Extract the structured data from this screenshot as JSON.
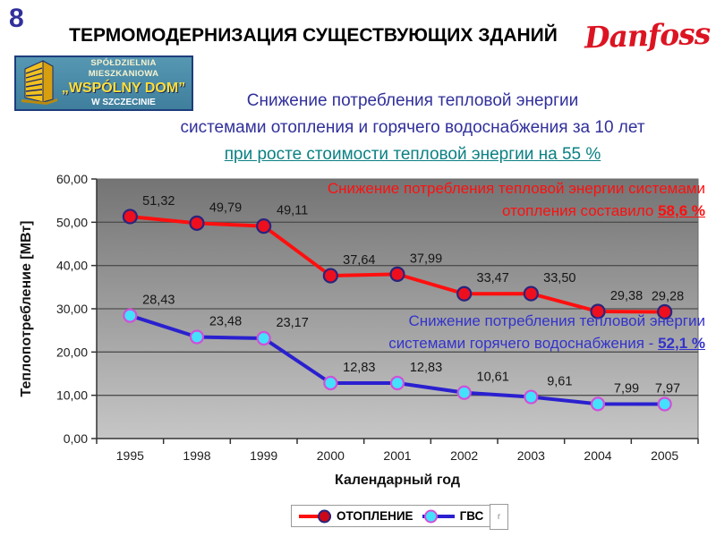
{
  "slide": {
    "page_number": "8",
    "title": "ТЕРМОМОДЕРНИЗАЦИЯ СУЩЕСТВУЮЩИХ ЗДАНИЙ",
    "subtitle_line1": "Снижение потребления тепловой энергии",
    "subtitle_line2": "системами отопления и горячего водоснабжения за 10 лет",
    "subtitle_line3": "при росте стоимости тепловой энергии на 55 %"
  },
  "logos": {
    "danfoss_text": "Danfoss",
    "danfoss_color": "#dc1422",
    "coop_line1": "SPÓŁDZIELNIA MIESZKANIOWA",
    "coop_line2": "„WSPÓLNY DOM”",
    "coop_line3": "W SZCZECINIE"
  },
  "annotations": {
    "heating": {
      "line1": "Снижение потребления тепловой энергии системами",
      "line2_prefix": "отопления составило ",
      "line2_value": "58,6 %",
      "color": "#ff0f0f"
    },
    "dhw": {
      "line1": "Снижение потребления тепловой энергии",
      "line2_prefix": "системами горячего водоснабжения - ",
      "line2_value": "52,1 %",
      "color": "#3333cc"
    }
  },
  "chart_data": {
    "type": "line",
    "title": "",
    "xlabel": "Календарный год",
    "ylabel": "Теплопотребление [МВт]",
    "categories": [
      "1995",
      "1998",
      "1999",
      "2000",
      "2001",
      "2002",
      "2003",
      "2004",
      "2005"
    ],
    "ylim": [
      0,
      60
    ],
    "ytick_step": 10,
    "ytick_labels": [
      "0,00",
      "10,00",
      "20,00",
      "30,00",
      "40,00",
      "50,00",
      "60,00"
    ],
    "grid": true,
    "legend_position": "bottom",
    "plot_bg_top": "#747474",
    "plot_bg_bottom": "#c6c6c6",
    "gridline_color": "#4f4f4f",
    "series": [
      {
        "name": "ОТОПЛЕНИЕ",
        "values": [
          51.32,
          49.79,
          49.11,
          37.64,
          37.99,
          33.47,
          33.5,
          29.38,
          29.28
        ],
        "labels": [
          "51,32",
          "49,79",
          "49,11",
          "37,64",
          "37,99",
          "33,47",
          "33,50",
          "29,38",
          "29,28"
        ],
        "line_color": "#ff0f0f",
        "marker_fill": "#ee0f1e",
        "marker_edge": "#28257d"
      },
      {
        "name": "ГВС",
        "values": [
          28.43,
          23.48,
          23.17,
          12.83,
          12.83,
          10.61,
          9.61,
          7.99,
          7.97
        ],
        "labels": [
          "28,43",
          "23,48",
          "23,17",
          "12,83",
          "12,83",
          "10,61",
          "9,61",
          "7,99",
          "7,97"
        ],
        "line_color": "#2a20cf",
        "marker_fill": "#45e0fc",
        "marker_edge": "#d050d8"
      }
    ]
  },
  "legend": {
    "stray_char": "r"
  }
}
